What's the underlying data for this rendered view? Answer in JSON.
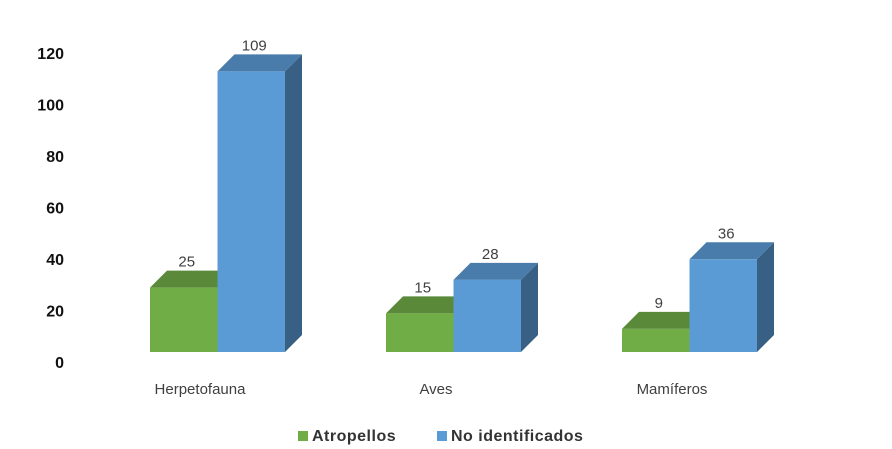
{
  "chart_data": {
    "type": "bar",
    "categories": [
      "Herpetofauna",
      "Aves",
      "Mamíferos"
    ],
    "series": [
      {
        "name": "Atropellos",
        "color": "#70ad47",
        "values": [
          25,
          15,
          9
        ]
      },
      {
        "name": "No identificados",
        "color": "#5b9bd5",
        "values": [
          109,
          28,
          36
        ]
      }
    ],
    "ylim": [
      0,
      120
    ],
    "yticks": [
      0,
      20,
      40,
      60,
      80,
      100,
      120
    ],
    "legend": "bottom"
  }
}
